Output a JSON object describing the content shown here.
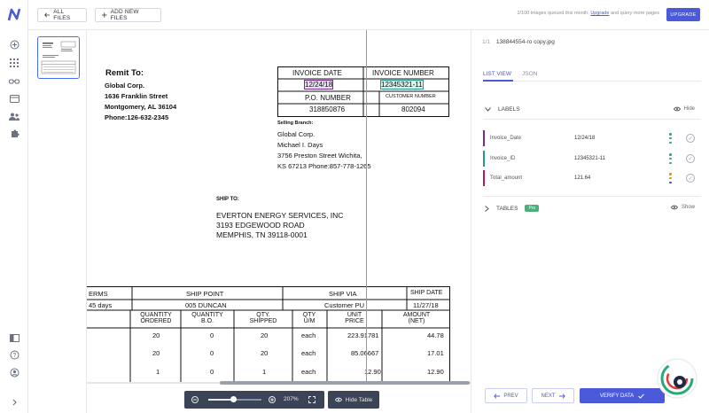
{
  "topbar": {
    "all_files_label": "ALL FILES",
    "add_new_files_label": "ADD NEW FILES",
    "quota_prefix": "2/100 images queued this month. ",
    "quota_link": "Upgrade",
    "quota_suffix": " and query more pages",
    "upgrade_label": "UPGRADE"
  },
  "sidebar": {
    "icons": [
      "add-icon",
      "apps-grid-icon",
      "glasses-icon",
      "card-icon",
      "team-icon",
      "puzzle-icon",
      "layout-icon",
      "help-icon",
      "account-icon",
      "expand-icon"
    ]
  },
  "document": {
    "remit_to_heading": "Remit To:",
    "remit_lines": [
      "Global Corp.",
      "1636 Franklin Street",
      "Montgomery, AL 36104",
      "Phone:126-632-2345"
    ],
    "invoice_date_header": "INVOICE DATE",
    "invoice_number_header": "INVOICE NUMBER",
    "invoice_date_value": "12/24/18",
    "invoice_number_value": "12345321-11",
    "po_number_header": "P.O. NUMBER",
    "customer_number_header": "CUSTOMER NUMBER",
    "po_number_value": "318850876",
    "customer_number_value": "802094",
    "selling_branch_heading": "Selling Branch:",
    "selling_lines": [
      "Global Corp.",
      "Michael I. Days",
      "3756 Preston Street Wichita,",
      "KS 67213 Phone:857-778-1265"
    ],
    "ship_to_heading": "SHIP TO:",
    "ship_lines": [
      "EVERTON  ENERGY SERVICES, INC",
      "3193  EDGEWOOD ROAD",
      "MEMPHIS, TN 39118-0001"
    ],
    "table_headers": [
      "ERMS",
      "SHIP POINT",
      "SHIP VIA",
      "SHIP DATE"
    ],
    "table_values": [
      "45 days",
      "005 DUNCAN",
      "Customer PU",
      "11/27/18"
    ],
    "item_headers": [
      [
        "QUANTITY",
        "ORDERED"
      ],
      [
        "QUANTITY",
        "B.O."
      ],
      [
        "QTY.",
        "SHIPPED"
      ],
      [
        "QTY",
        "U/M"
      ],
      [
        "UNIT",
        "PRICE"
      ],
      [
        "AMOUNT",
        "(NET)"
      ]
    ],
    "items": [
      [
        "20",
        "0",
        "20",
        "each",
        "223.91781",
        "44.78"
      ],
      [
        "20",
        "0",
        "20",
        "each",
        "85.06667",
        "17.01"
      ],
      [
        "1",
        "0",
        "1",
        "each",
        "12.90",
        "12.90"
      ]
    ]
  },
  "viewer": {
    "zoom_level": "207%",
    "hide_table_label": "Hide Table"
  },
  "panel": {
    "page_indicator": "1/1",
    "file_name": "138844554-ro copy.jpg",
    "tabs": [
      "LIST VIEW",
      "JSON"
    ],
    "labels_heading": "LABELS",
    "hide_label": "Hide",
    "labels": [
      {
        "name": "Invoice_Date",
        "value": "12/24/18",
        "color": "#7b2d8e"
      },
      {
        "name": "Invoice_ID",
        "value": "12345321-11",
        "color": "#1f9d8a"
      },
      {
        "name": "Total_amount",
        "value": "121.64",
        "color": "#c2185b"
      }
    ],
    "tables_heading": "TABLES",
    "pro_badge": "Pro",
    "show_label": "Show",
    "prev_label": "PREV",
    "next_label": "NEXT",
    "verify_label": "VERIFY DATA"
  },
  "colors": {
    "accent": "#4a5ad8",
    "dark_toolbar": "#3b4456",
    "pro_green": "#4caf7a"
  }
}
